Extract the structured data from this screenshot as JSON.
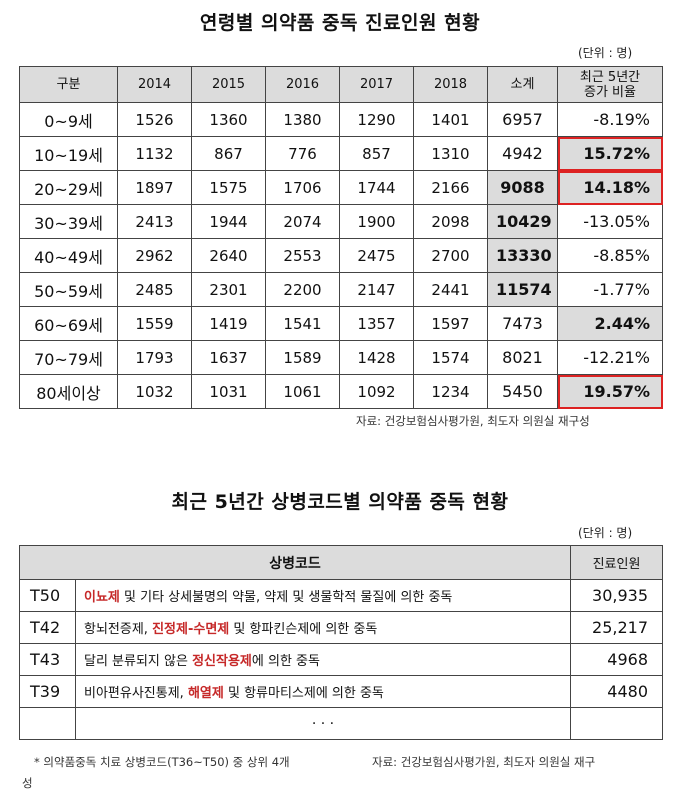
{
  "table1": {
    "title": "연령별 의약품 중독 진료인원 현황",
    "unit": "(단위 : 명)",
    "headers": [
      "구분",
      "2014",
      "2015",
      "2016",
      "2017",
      "2018",
      "소계",
      "최근 5년간",
      "증가 비율"
    ],
    "rows": [
      {
        "age": "0~9세",
        "v2014": "1526",
        "v2015": "1360",
        "v2016": "1380",
        "v2017": "1290",
        "v2018": "1401",
        "sum": "6957",
        "pct": "-8.19%"
      },
      {
        "age": "10~19세",
        "v2014": "1132",
        "v2015": "867",
        "v2016": "776",
        "v2017": "857",
        "v2018": "1310",
        "sum": "4942",
        "pct": "15.72%"
      },
      {
        "age": "20~29세",
        "v2014": "1897",
        "v2015": "1575",
        "v2016": "1706",
        "v2017": "1744",
        "v2018": "2166",
        "sum": "9088",
        "pct": "14.18%"
      },
      {
        "age": "30~39세",
        "v2014": "2413",
        "v2015": "1944",
        "v2016": "2074",
        "v2017": "1900",
        "v2018": "2098",
        "sum": "10429",
        "pct": "-13.05%"
      },
      {
        "age": "40~49세",
        "v2014": "2962",
        "v2015": "2640",
        "v2016": "2553",
        "v2017": "2475",
        "v2018": "2700",
        "sum": "13330",
        "pct": "-8.85%"
      },
      {
        "age": "50~59세",
        "v2014": "2485",
        "v2015": "2301",
        "v2016": "2200",
        "v2017": "2147",
        "v2018": "2441",
        "sum": "11574",
        "pct": "-1.77%"
      },
      {
        "age": "60~69세",
        "v2014": "1559",
        "v2015": "1419",
        "v2016": "1541",
        "v2017": "1357",
        "v2018": "1597",
        "sum": "7473",
        "pct": "2.44%"
      },
      {
        "age": "70~79세",
        "v2014": "1793",
        "v2015": "1637",
        "v2016": "1589",
        "v2017": "1428",
        "v2018": "1574",
        "sum": "8021",
        "pct": "-12.21%"
      },
      {
        "age": "80세이상",
        "v2014": "1032",
        "v2015": "1031",
        "v2016": "1061",
        "v2017": "1092",
        "v2018": "1234",
        "sum": "5450",
        "pct": "19.57%"
      }
    ],
    "source": "자료: 건강보험심사평가원, 최도자 의원실 재구성"
  },
  "table2": {
    "title": "최근 5년간 상병코드별 의약품 중독 현황",
    "unit": "(단위 : 명)",
    "header_code": "상병코드",
    "header_count": "진료인원",
    "rows": [
      {
        "code": "T50",
        "pre": "",
        "red": "이뇨제",
        "post": " 및 기타 상세불명의 약물, 약제 및 생물학적 물질에 의한 중독",
        "count": "30,935"
      },
      {
        "code": "T42",
        "pre": "항뇌전증제, ",
        "red": "진정제-수면제",
        "post": " 및 항파킨슨제에 의한 중독",
        "count": "25,217"
      },
      {
        "code": "T43",
        "pre": "달리 분류되지 않은 ",
        "red": "정신작용제",
        "post": "에 의한 중독",
        "count": "4968"
      },
      {
        "code": "T39",
        "pre": "비아편유사진통제, ",
        "red": "해열제",
        "post": " 및 항류마티스제에 의한 중독",
        "count": "4480"
      }
    ],
    "ellipsis": "· · ·",
    "footnote": "* 의약품중독 치료 상병코드(T36~T50) 중 상위 4개",
    "source": "자료: 건강보험심사평가원, 최도자 의원실 재구",
    "source_wrap": "성"
  }
}
